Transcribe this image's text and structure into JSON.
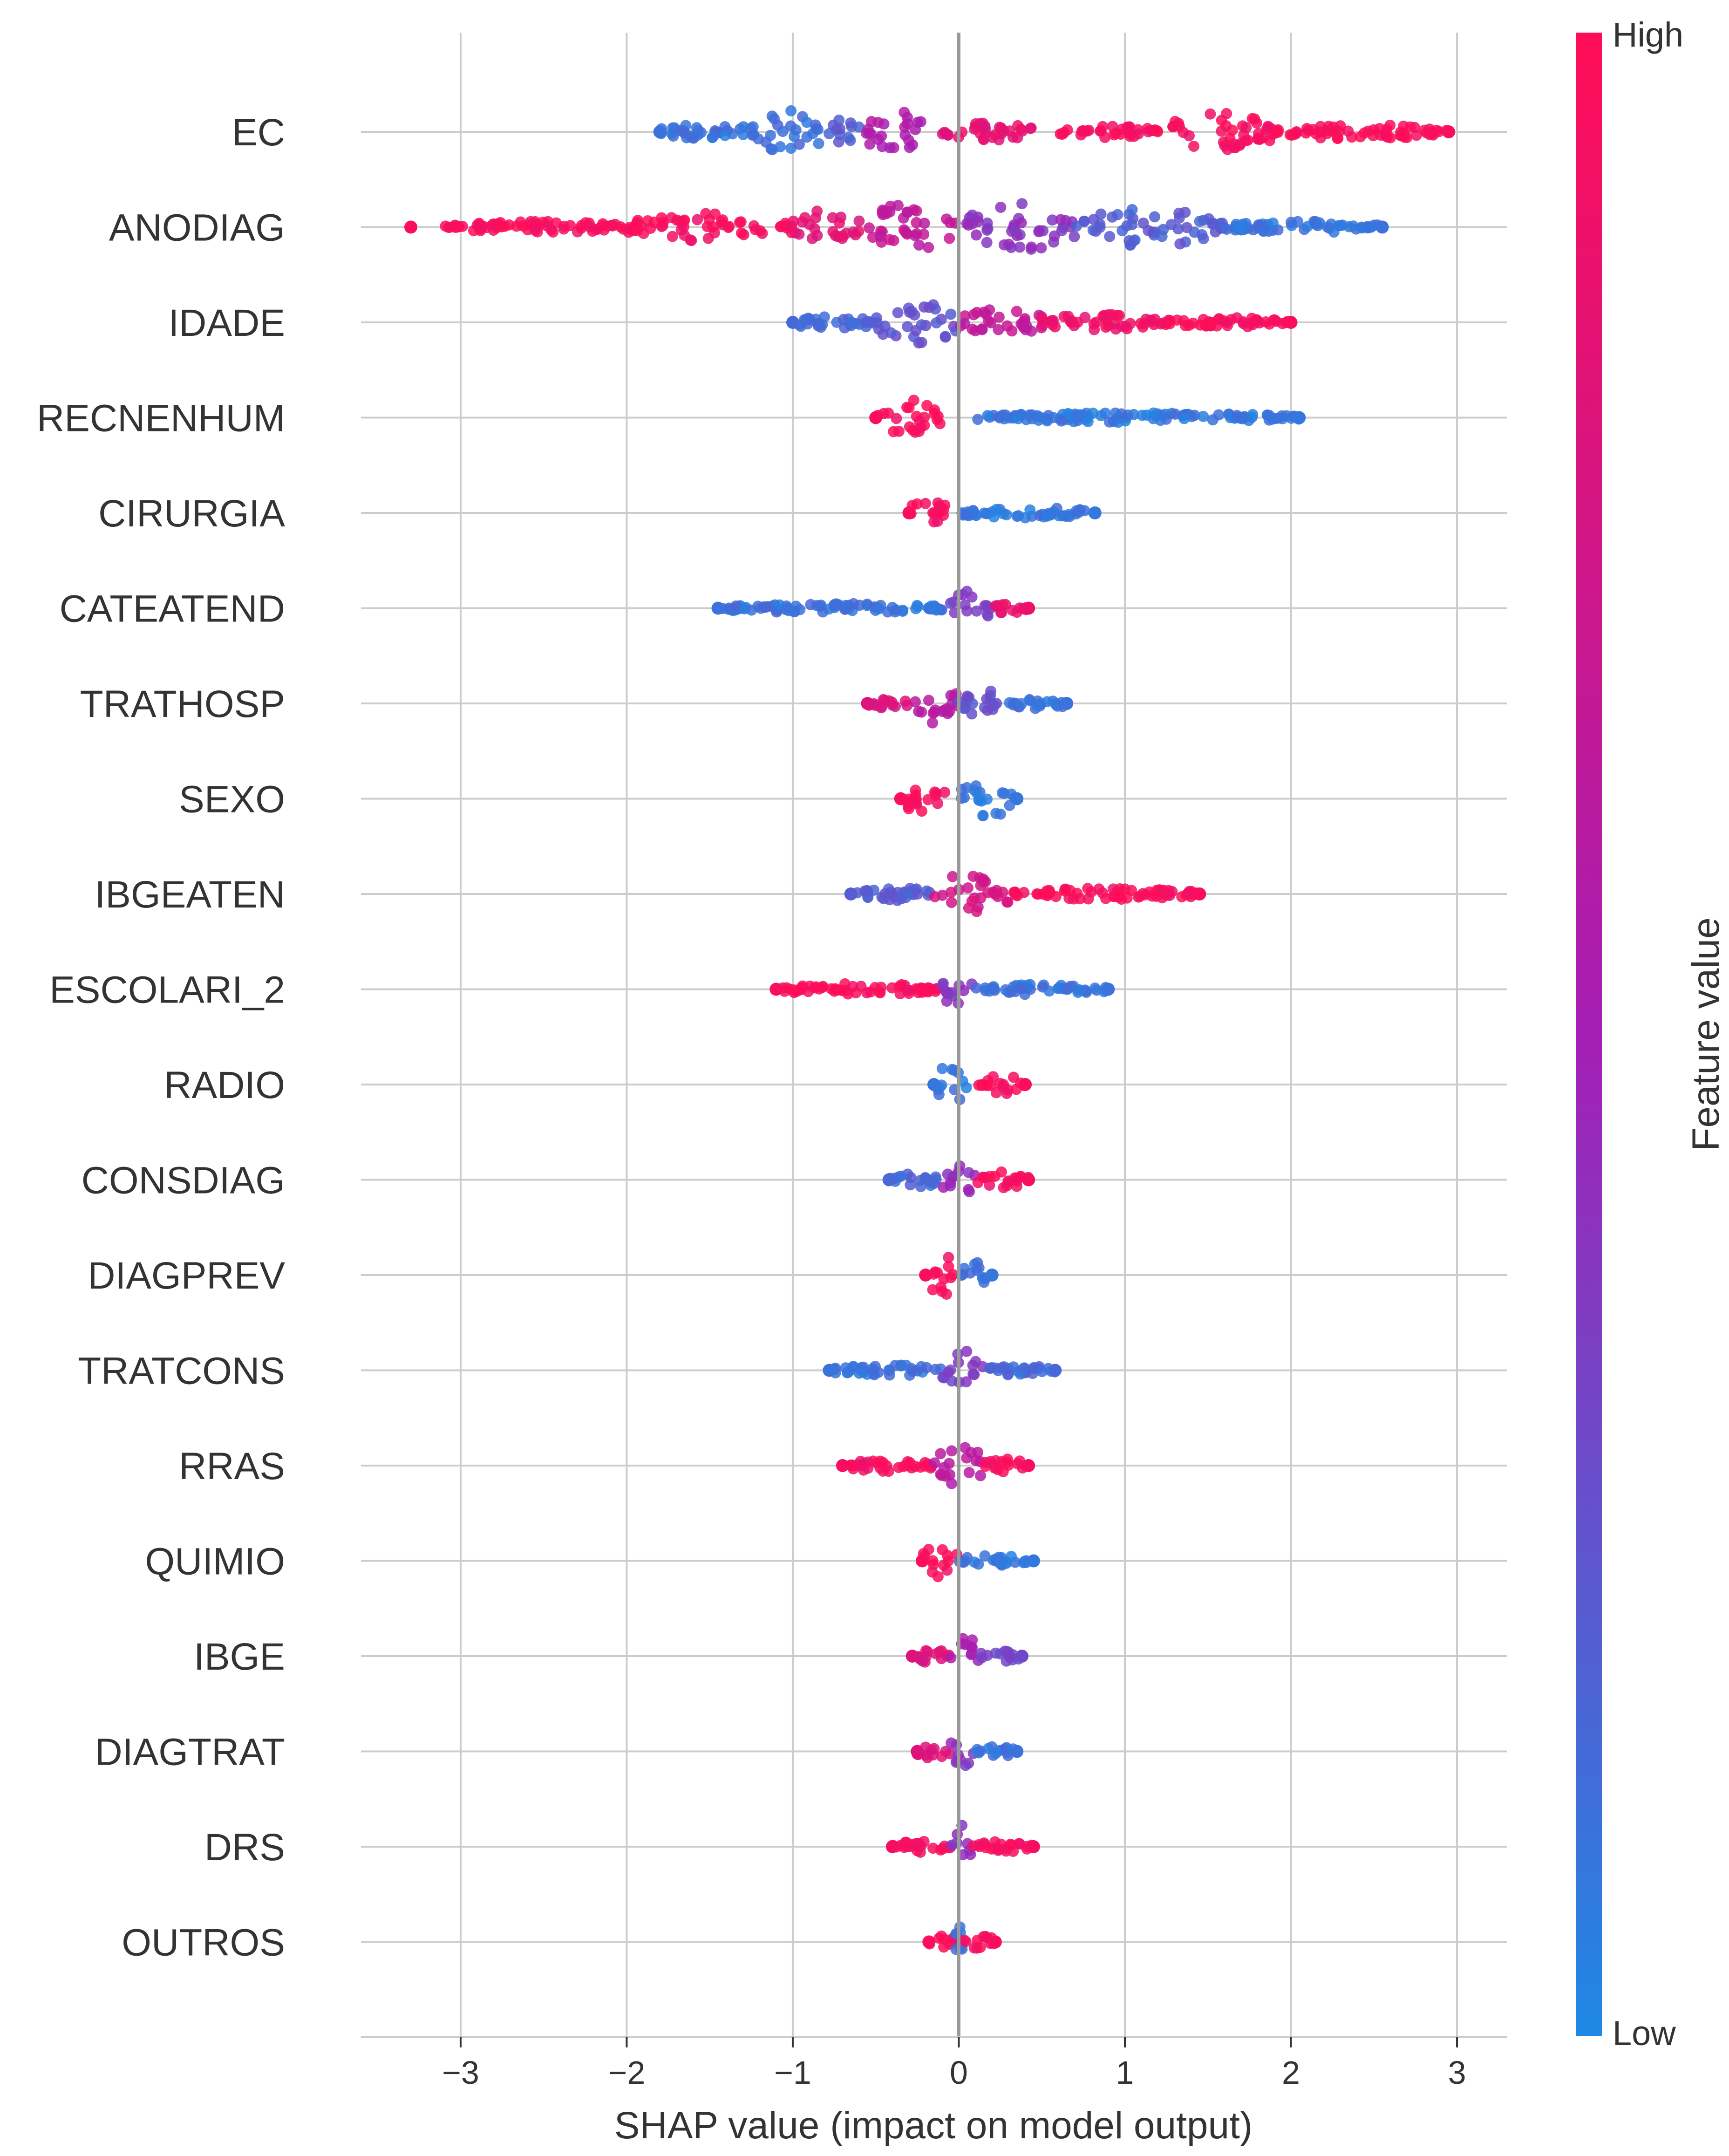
{
  "chart_data": {
    "type": "scatter",
    "subtype": "shap-beeswarm",
    "xlabel": "SHAP value (impact on model output)",
    "xlim": [
      -3.6,
      3.3
    ],
    "xticks": [
      -3,
      -2,
      -1,
      0,
      1,
      2,
      3
    ],
    "xtick_labels": [
      "−3",
      "−2",
      "−1",
      "0",
      "1",
      "2",
      "3"
    ],
    "colorbar": {
      "label": "Feature value",
      "high_label": "High",
      "low_label": "Low",
      "high_color": "#ff0d57",
      "mid_color": "#a51eb4",
      "low_color": "#1e88e5"
    },
    "features": [
      {
        "name": "EC",
        "min": -1.8,
        "max": 2.95,
        "segments": [
          {
            "from": -1.8,
            "to": -1.3,
            "height": 0.15,
            "v": 0.1
          },
          {
            "from": -1.3,
            "to": -0.8,
            "height": 0.45,
            "v": 0.12
          },
          {
            "from": -0.8,
            "to": -0.6,
            "height": 0.3,
            "v": 0.2
          },
          {
            "from": -0.6,
            "to": -0.2,
            "height": 0.5,
            "v": 0.55
          },
          {
            "from": -0.1,
            "to": 0.45,
            "height": 0.2,
            "v": 0.85
          },
          {
            "from": 0.6,
            "to": 1.2,
            "height": 0.12,
            "v": 0.95
          },
          {
            "from": 1.2,
            "to": 1.9,
            "height": 0.4,
            "v": 0.95
          },
          {
            "from": 1.9,
            "to": 2.95,
            "height": 0.15,
            "v": 0.97
          }
        ]
      },
      {
        "name": "ANODIAG",
        "min": -3.3,
        "max": 2.55,
        "segments": [
          {
            "from": -3.1,
            "to": -2.0,
            "height": 0.12,
            "v": 0.97
          },
          {
            "from": -2.0,
            "to": -1.0,
            "height": 0.3,
            "v": 0.95
          },
          {
            "from": -1.0,
            "to": -0.6,
            "height": 0.38,
            "v": 0.85
          },
          {
            "from": -0.6,
            "to": 0.0,
            "height": 0.5,
            "v": 0.65
          },
          {
            "from": 0.0,
            "to": 0.7,
            "height": 0.5,
            "v": 0.4
          },
          {
            "from": 0.7,
            "to": 1.6,
            "height": 0.4,
            "v": 0.2
          },
          {
            "from": 1.6,
            "to": 2.55,
            "height": 0.12,
            "v": 0.1
          }
        ]
      },
      {
        "name": "IDADE",
        "min": -1.0,
        "max": 2.0,
        "segments": [
          {
            "from": -1.0,
            "to": -0.5,
            "height": 0.15,
            "v": 0.15
          },
          {
            "from": -0.5,
            "to": 0.0,
            "height": 0.48,
            "v": 0.25
          },
          {
            "from": 0.0,
            "to": 0.5,
            "height": 0.35,
            "v": 0.65
          },
          {
            "from": 0.5,
            "to": 1.2,
            "height": 0.18,
            "v": 0.9
          },
          {
            "from": 1.2,
            "to": 2.0,
            "height": 0.1,
            "v": 0.97
          }
        ]
      },
      {
        "name": "RECNENHUM",
        "min": -0.5,
        "max": 2.05,
        "segments": [
          {
            "from": -0.5,
            "to": -0.1,
            "height": 0.4,
            "v": 0.97
          },
          {
            "from": 0.1,
            "to": 2.05,
            "height": 0.1,
            "v": 0.08
          }
        ]
      },
      {
        "name": "CIRURGIA",
        "min": -0.3,
        "max": 0.82,
        "segments": [
          {
            "from": -0.3,
            "to": -0.05,
            "height": 0.4,
            "v": 0.97
          },
          {
            "from": 0.0,
            "to": 0.82,
            "height": 0.12,
            "v": 0.08
          }
        ]
      },
      {
        "name": "CATEATEND",
        "min": -1.45,
        "max": 0.42,
        "segments": [
          {
            "from": -1.45,
            "to": -0.05,
            "height": 0.1,
            "v": 0.1
          },
          {
            "from": -0.05,
            "to": 0.2,
            "height": 0.45,
            "v": 0.35
          },
          {
            "from": 0.2,
            "to": 0.42,
            "height": 0.12,
            "v": 0.9
          }
        ]
      },
      {
        "name": "TRATHOSP",
        "min": -0.55,
        "max": 0.65,
        "segments": [
          {
            "from": -0.55,
            "to": -0.3,
            "height": 0.1,
            "v": 0.8
          },
          {
            "from": -0.3,
            "to": 0.0,
            "height": 0.42,
            "v": 0.6
          },
          {
            "from": 0.0,
            "to": 0.3,
            "height": 0.3,
            "v": 0.25
          },
          {
            "from": 0.3,
            "to": 0.65,
            "height": 0.12,
            "v": 0.1
          }
        ]
      },
      {
        "name": "SEXO",
        "min": -0.35,
        "max": 0.35,
        "segments": [
          {
            "from": -0.35,
            "to": -0.05,
            "height": 0.35,
            "v": 0.97
          },
          {
            "from": 0.0,
            "to": 0.35,
            "height": 0.4,
            "v": 0.08
          }
        ]
      },
      {
        "name": "IBGEATEN",
        "min": -0.65,
        "max": 1.45,
        "segments": [
          {
            "from": -0.65,
            "to": -0.15,
            "height": 0.15,
            "v": 0.2
          },
          {
            "from": -0.15,
            "to": 0.3,
            "height": 0.45,
            "v": 0.75
          },
          {
            "from": 0.3,
            "to": 1.45,
            "height": 0.12,
            "v": 0.97
          }
        ]
      },
      {
        "name": "ESCOLARI_2",
        "min": -1.1,
        "max": 0.9,
        "segments": [
          {
            "from": -1.1,
            "to": -0.1,
            "height": 0.12,
            "v": 0.97
          },
          {
            "from": -0.1,
            "to": 0.1,
            "height": 0.42,
            "v": 0.4
          },
          {
            "from": 0.1,
            "to": 0.9,
            "height": 0.12,
            "v": 0.1
          }
        ]
      },
      {
        "name": "RADIO",
        "min": -0.15,
        "max": 0.4,
        "segments": [
          {
            "from": -0.15,
            "to": 0.05,
            "height": 0.42,
            "v": 0.08
          },
          {
            "from": 0.1,
            "to": 0.4,
            "height": 0.2,
            "v": 0.97
          }
        ]
      },
      {
        "name": "CONSDIAG",
        "min": -0.42,
        "max": 0.42,
        "segments": [
          {
            "from": -0.42,
            "to": -0.1,
            "height": 0.15,
            "v": 0.15
          },
          {
            "from": -0.1,
            "to": 0.1,
            "height": 0.42,
            "v": 0.45
          },
          {
            "from": 0.1,
            "to": 0.42,
            "height": 0.2,
            "v": 0.95
          }
        ]
      },
      {
        "name": "DIAGPREV",
        "min": -0.2,
        "max": 0.2,
        "segments": [
          {
            "from": -0.2,
            "to": 0.0,
            "height": 0.45,
            "v": 0.97
          },
          {
            "from": 0.0,
            "to": 0.2,
            "height": 0.3,
            "v": 0.08
          }
        ]
      },
      {
        "name": "TRATCONS",
        "min": -0.78,
        "max": 0.58,
        "segments": [
          {
            "from": -0.78,
            "to": -0.1,
            "height": 0.12,
            "v": 0.1
          },
          {
            "from": -0.1,
            "to": 0.15,
            "height": 0.42,
            "v": 0.35
          },
          {
            "from": 0.15,
            "to": 0.58,
            "height": 0.1,
            "v": 0.15
          }
        ]
      },
      {
        "name": "RRAS",
        "min": -0.7,
        "max": 0.42,
        "segments": [
          {
            "from": -0.7,
            "to": -0.15,
            "height": 0.12,
            "v": 0.95
          },
          {
            "from": -0.15,
            "to": 0.15,
            "height": 0.45,
            "v": 0.6
          },
          {
            "from": 0.15,
            "to": 0.42,
            "height": 0.15,
            "v": 0.95
          }
        ]
      },
      {
        "name": "QUIMIO",
        "min": -0.22,
        "max": 0.45,
        "segments": [
          {
            "from": -0.22,
            "to": 0.0,
            "height": 0.42,
            "v": 0.97
          },
          {
            "from": 0.0,
            "to": 0.45,
            "height": 0.12,
            "v": 0.08
          }
        ]
      },
      {
        "name": "IBGE",
        "min": -0.28,
        "max": 0.38,
        "segments": [
          {
            "from": -0.28,
            "to": -0.05,
            "height": 0.15,
            "v": 0.8
          },
          {
            "from": -0.05,
            "to": 0.12,
            "height": 0.45,
            "v": 0.5
          },
          {
            "from": 0.12,
            "to": 0.38,
            "height": 0.12,
            "v": 0.3
          }
        ]
      },
      {
        "name": "DIAGTRAT",
        "min": -0.25,
        "max": 0.35,
        "segments": [
          {
            "from": -0.25,
            "to": -0.05,
            "height": 0.15,
            "v": 0.8
          },
          {
            "from": -0.05,
            "to": 0.1,
            "height": 0.42,
            "v": 0.4
          },
          {
            "from": 0.1,
            "to": 0.35,
            "height": 0.12,
            "v": 0.1
          }
        ]
      },
      {
        "name": "DRS",
        "min": -0.4,
        "max": 0.45,
        "segments": [
          {
            "from": -0.4,
            "to": -0.05,
            "height": 0.12,
            "v": 0.95
          },
          {
            "from": -0.05,
            "to": 0.08,
            "height": 0.45,
            "v": 0.4
          },
          {
            "from": 0.08,
            "to": 0.45,
            "height": 0.12,
            "v": 0.95
          }
        ]
      },
      {
        "name": "OUTROS",
        "min": -0.18,
        "max": 0.22,
        "segments": [
          {
            "from": -0.18,
            "to": -0.02,
            "height": 0.15,
            "v": 0.97
          },
          {
            "from": -0.02,
            "to": 0.02,
            "height": 0.45,
            "v": 0.08
          },
          {
            "from": 0.02,
            "to": 0.22,
            "height": 0.15,
            "v": 0.97
          }
        ]
      }
    ]
  }
}
